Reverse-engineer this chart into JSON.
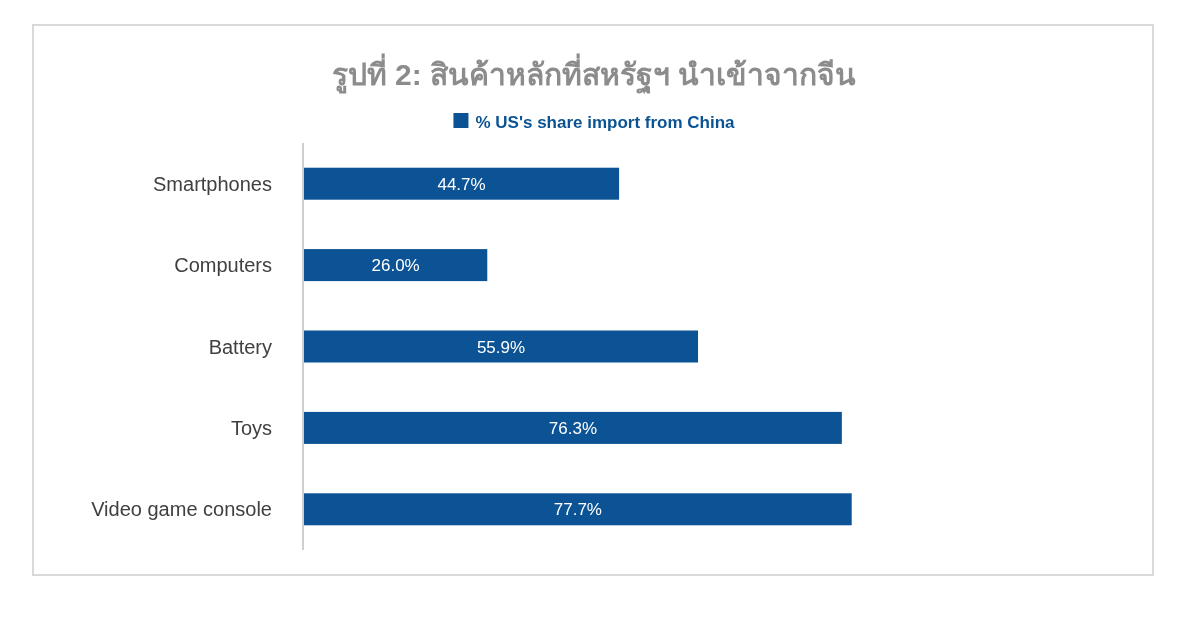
{
  "chart_data": {
    "type": "bar",
    "orientation": "horizontal",
    "title": "รูปที่ 2: สินค้าหลักที่สหรัฐฯ นำเข้าจากจีน",
    "categories": [
      "Smartphones",
      "Computers",
      "Battery",
      "Toys",
      "Video game console"
    ],
    "series": [
      {
        "name": "% US's share import from China",
        "color": "#0b5394",
        "values": [
          44.7,
          26.0,
          55.9,
          76.3,
          77.7
        ],
        "value_labels": [
          "44.7%",
          "26.0%",
          "55.9%",
          "76.3%",
          "77.7%"
        ]
      }
    ],
    "legend": "top"
  }
}
